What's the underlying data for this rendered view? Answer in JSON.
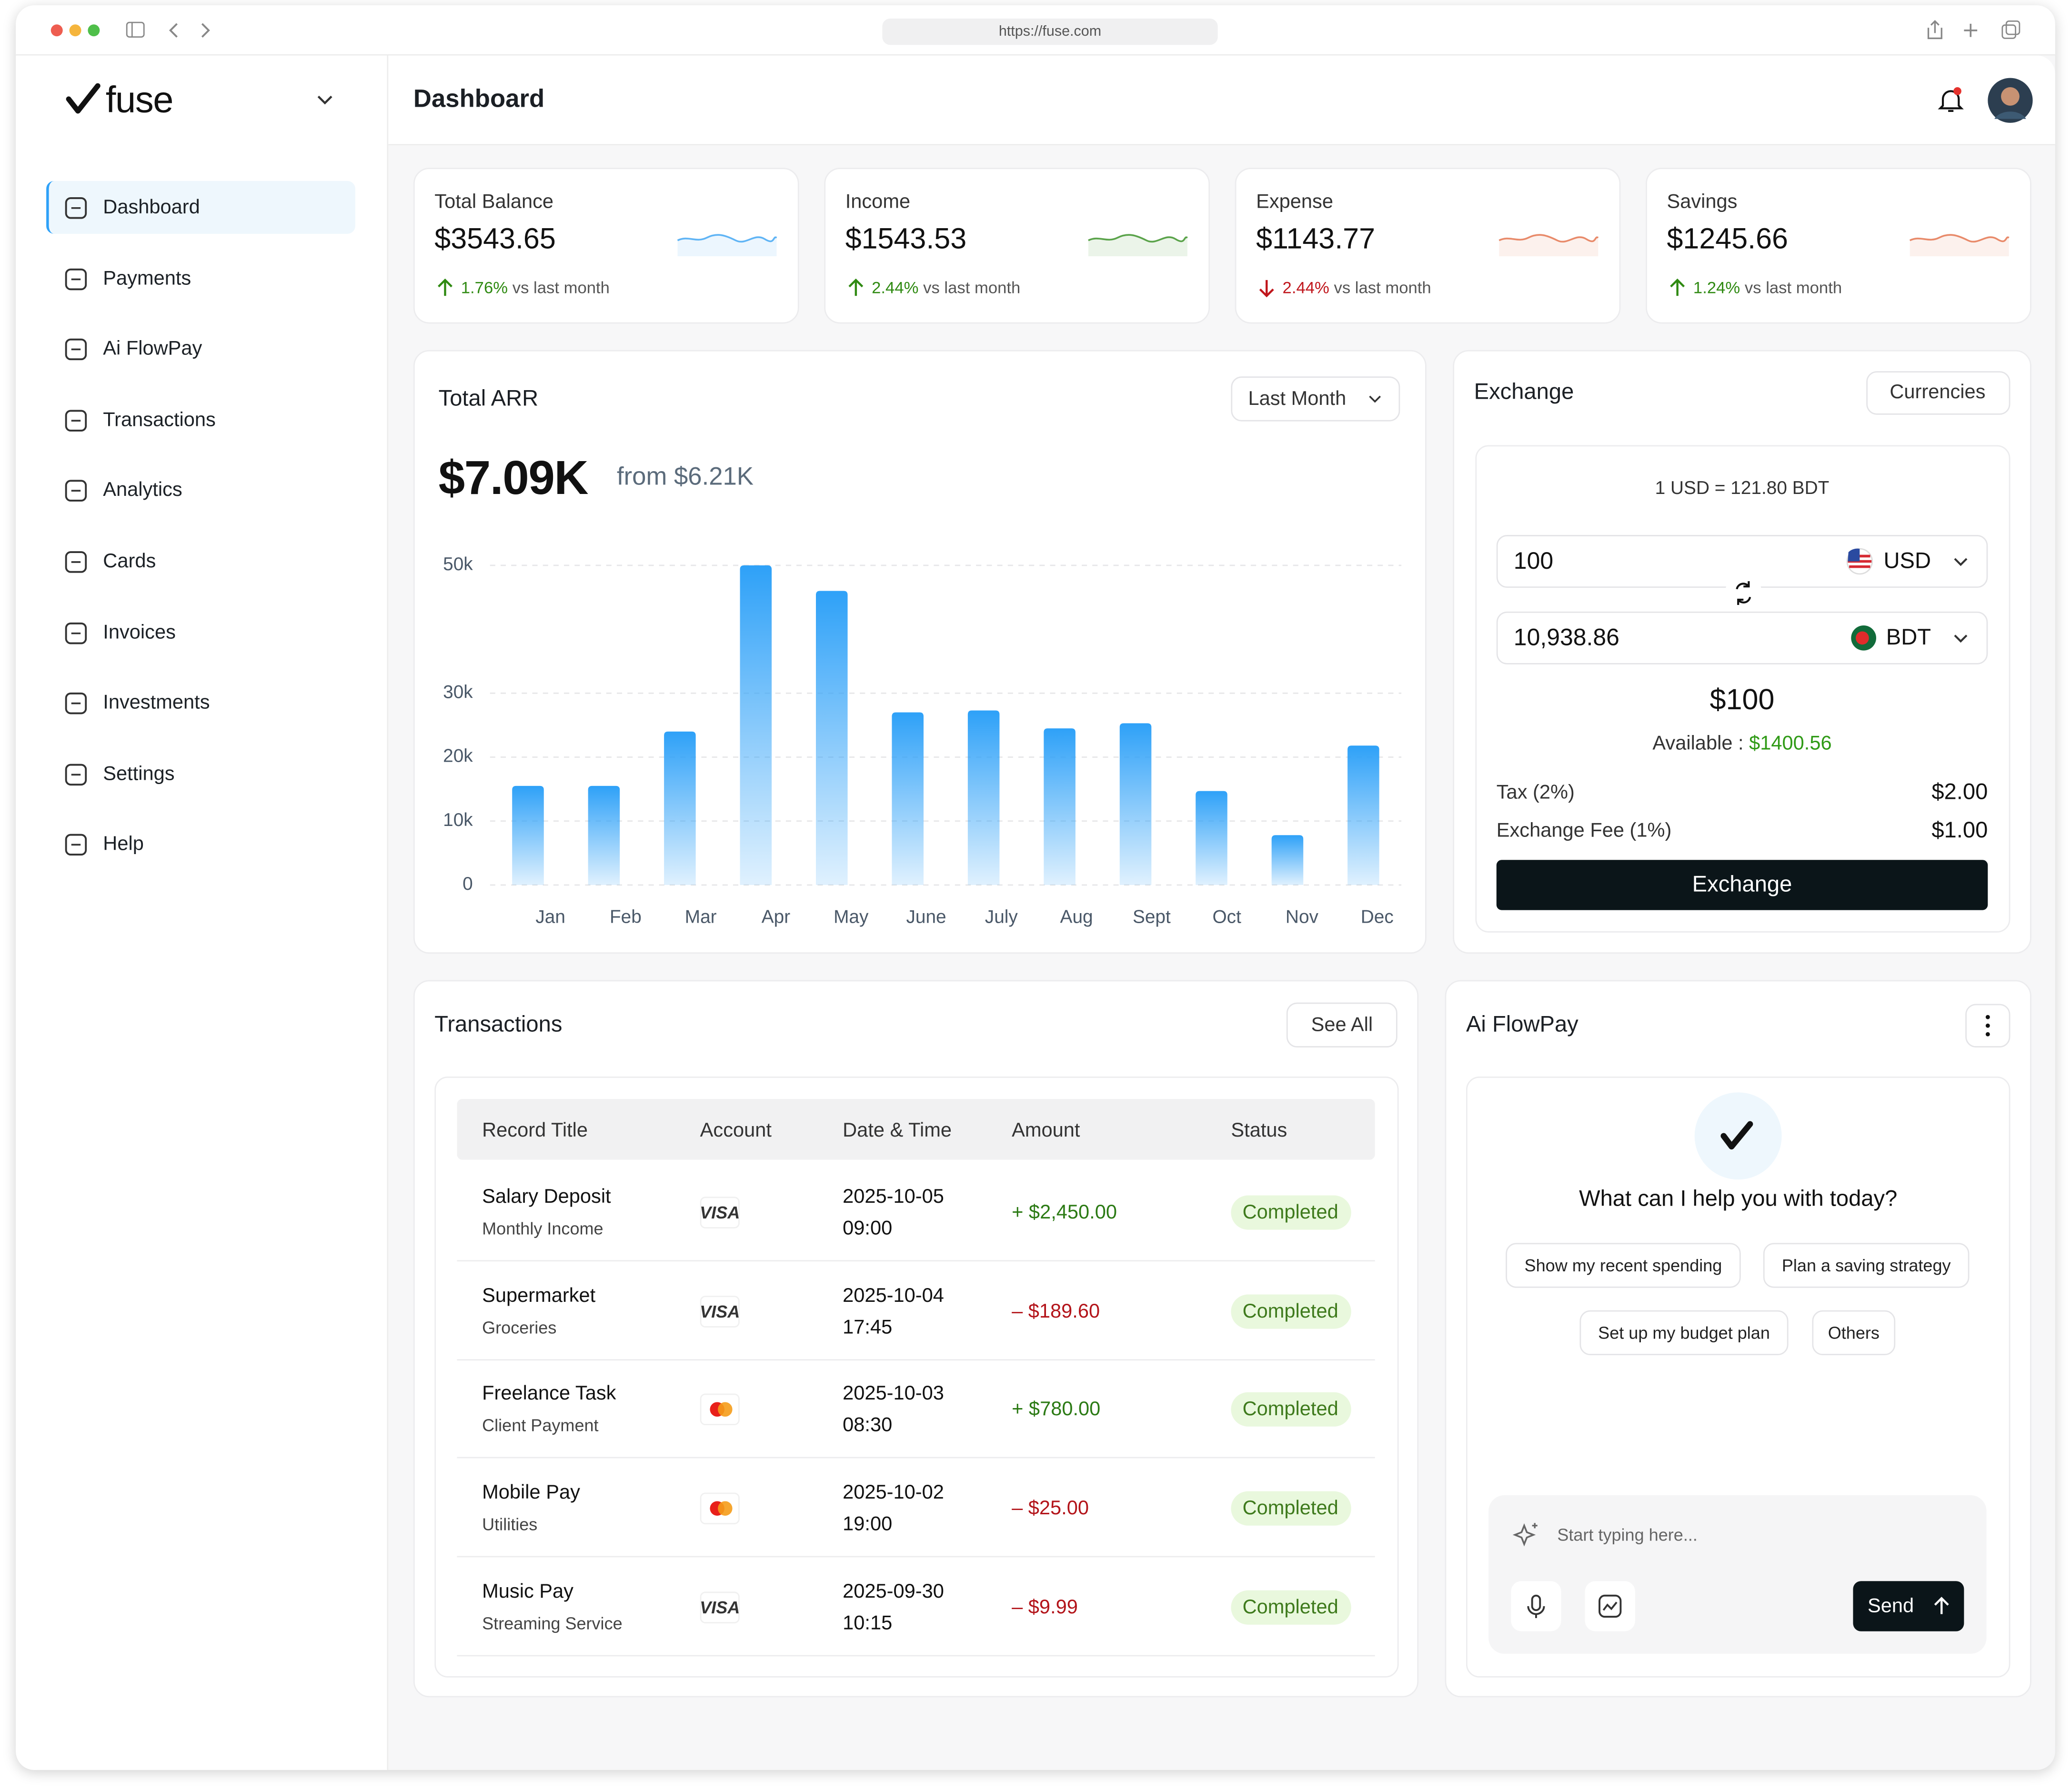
{
  "browser": {
    "url": "https://fuse.com"
  },
  "sidebar": {
    "logo": "fuse",
    "nav": [
      "Dashboard",
      "Payments",
      "Ai FlowPay",
      "Transactions",
      "Analytics",
      "Cards",
      "Invoices",
      "Investments",
      "Settings",
      "Help"
    ]
  },
  "header": {
    "title": "Dashboard"
  },
  "stats": [
    {
      "label": "Total Balance",
      "value": "$3543.65",
      "change": "1.76%",
      "note": "vs last month",
      "trend": "up"
    },
    {
      "label": "Income",
      "value": "$1543.53",
      "change": "2.44%",
      "note": "vs last month",
      "trend": "up"
    },
    {
      "label": "Expense",
      "value": "$1143.77",
      "change": "2.44%",
      "note": "vs last month",
      "trend": "down"
    },
    {
      "label": "Savings",
      "value": "$1245.66",
      "change": "1.24%",
      "note": "vs last month",
      "trend": "up"
    }
  ],
  "chart_data": {
    "type": "bar",
    "title": "Total ARR",
    "value": "$7.09K",
    "comparison": "from $6.21K",
    "period": "Last Month",
    "categories": [
      "Jan",
      "Feb",
      "Mar",
      "Apr",
      "May",
      "June",
      "July",
      "Aug",
      "Sept",
      "Oct",
      "Nov",
      "Dec"
    ],
    "values": [
      15500,
      15500,
      24000,
      50000,
      46000,
      27000,
      27300,
      24500,
      25300,
      14700,
      7800,
      21800
    ],
    "color": "#2ea1f8",
    "ylim": [
      0,
      50000
    ],
    "yticks": [
      0,
      {
        "value": 10000,
        "label": "10k"
      },
      {
        "value": 20000,
        "label": "20k"
      },
      {
        "value": 30000,
        "label": "30k"
      },
      {
        "value": 50000,
        "label": "50k"
      }
    ],
    "grid": true
  },
  "exchange": {
    "title": "Exchange",
    "action": "Currencies",
    "rate": "1 USD = 121.80 BDT",
    "from_amount": "100",
    "from_currency": "USD",
    "to_amount": "10,938.86",
    "to_currency": "BDT",
    "amount": "$100",
    "available_label": "Available :",
    "available": "$1400.56",
    "fees": [
      [
        "Tax (2%)",
        "$2.00"
      ],
      [
        "Exchange Fee (1%)",
        "$1.00"
      ]
    ],
    "button": "Exchange"
  },
  "transactions": {
    "title": "Transactions",
    "action": "See All",
    "columns": [
      "Record Title",
      "Account",
      "Date & Time",
      "Amount",
      "Status"
    ],
    "rows": [
      [
        "Salary Deposit",
        "Monthly Income",
        "VISA",
        "2025-10-05",
        "09:00",
        "+ $2,450.00",
        "Completed"
      ],
      [
        "Supermarket",
        "Groceries",
        "VISA",
        "2025-10-04",
        "17:45",
        "– $189.60",
        "Completed"
      ],
      [
        "Freelance Task",
        "Client Payment",
        null,
        "2025-10-03",
        "08:30",
        "+ $780.00",
        "Completed"
      ],
      [
        "Mobile Pay",
        "Utilities",
        null,
        "2025-10-02",
        "19:00",
        "– $25.00",
        "Completed"
      ],
      [
        "Music Pay",
        "Streaming Service",
        "VISA",
        "2025-09-30",
        "10:15",
        "– $9.99",
        "Completed"
      ]
    ]
  },
  "ai": {
    "title": "Ai FlowPay",
    "question": "What can I help you with today?",
    "suggestions": [
      "Show my recent spending",
      "Plan a saving strategy",
      "Set up my budget plan",
      "Others"
    ],
    "placeholder": "Start typing here...",
    "send": "Send"
  }
}
